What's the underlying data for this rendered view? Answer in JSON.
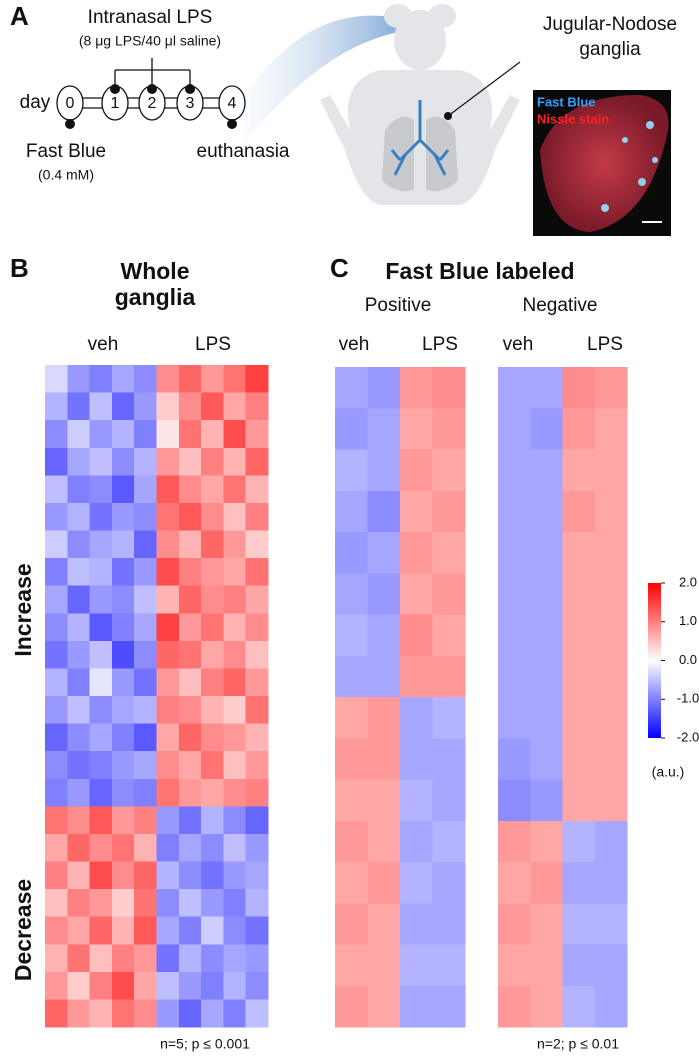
{
  "panel_a": {
    "letter": "A",
    "treatment": "Intranasal LPS",
    "dose": "(8 μg LPS/40 μl saline)",
    "day_label": "day",
    "days": [
      "0",
      "1",
      "2",
      "3",
      "4"
    ],
    "tracer": "Fast Blue",
    "tracer_dose": "(0.4 mM)",
    "endpoint": "euthanasia",
    "tissue": [
      "Jugular-Nodose",
      "ganglia"
    ],
    "stain_labels": [
      "Fast Blue",
      "Nissle stain"
    ]
  },
  "panel_b": {
    "letter": "B",
    "title": [
      "Whole",
      "ganglia"
    ],
    "columns": [
      "veh",
      "LPS"
    ],
    "groups": [
      "Increase",
      "Decrease"
    ],
    "footnote": "n=5; p ≤ 0.001",
    "heatmap": [
      [
        -0.3,
        -0.8,
        -1.0,
        -0.7,
        -0.9,
        0.9,
        1.2,
        0.8,
        1.1,
        1.5
      ],
      [
        -0.6,
        -1.1,
        -0.5,
        -1.2,
        -0.8,
        0.4,
        0.9,
        1.3,
        0.7,
        1.0
      ],
      [
        -0.9,
        -0.4,
        -0.8,
        -0.6,
        -1.0,
        0.2,
        1.1,
        0.6,
        1.4,
        0.8
      ],
      [
        -1.2,
        -0.7,
        -0.5,
        -0.9,
        -0.6,
        0.8,
        0.5,
        1.0,
        0.6,
        1.2
      ],
      [
        -0.5,
        -1.0,
        -0.9,
        -1.3,
        -0.7,
        1.3,
        0.9,
        0.7,
        1.1,
        0.6
      ],
      [
        -0.8,
        -0.6,
        -1.1,
        -0.8,
        -0.9,
        1.1,
        1.3,
        0.9,
        0.5,
        1.0
      ],
      [
        -0.4,
        -0.9,
        -0.7,
        -0.6,
        -1.2,
        0.9,
        0.6,
        1.2,
        0.8,
        0.4
      ],
      [
        -1.0,
        -0.5,
        -0.6,
        -1.1,
        -0.8,
        1.4,
        1.0,
        0.8,
        0.7,
        1.1
      ],
      [
        -0.7,
        -1.2,
        -0.8,
        -0.9,
        -0.5,
        0.6,
        1.2,
        0.9,
        1.0,
        0.7
      ],
      [
        -0.9,
        -0.6,
        -1.3,
        -1.0,
        -0.7,
        1.5,
        0.8,
        1.1,
        0.6,
        0.9
      ],
      [
        -1.1,
        -0.8,
        -0.5,
        -1.4,
        -0.9,
        1.2,
        1.1,
        0.7,
        0.9,
        0.5
      ],
      [
        -0.6,
        -1.0,
        -0.2,
        -0.8,
        -1.1,
        0.8,
        0.5,
        1.0,
        1.2,
        0.8
      ],
      [
        -0.8,
        -0.5,
        -0.9,
        -0.7,
        -0.6,
        1.0,
        0.9,
        0.6,
        0.4,
        1.1
      ],
      [
        -1.2,
        -0.9,
        -0.7,
        -1.0,
        -1.3,
        0.7,
        1.2,
        0.9,
        0.8,
        0.6
      ],
      [
        -0.9,
        -1.1,
        -1.0,
        -0.8,
        -0.7,
        0.9,
        0.7,
        1.1,
        0.5,
        0.8
      ],
      [
        -1.0,
        -0.8,
        -1.2,
        -0.9,
        -1.0,
        1.1,
        0.8,
        0.7,
        0.9,
        1.0
      ],
      [
        1.1,
        0.9,
        1.3,
        0.8,
        1.0,
        -0.8,
        -1.1,
        -0.6,
        -0.9,
        -1.2
      ],
      [
        0.7,
        1.2,
        0.9,
        1.1,
        0.6,
        -1.0,
        -0.7,
        -0.9,
        -0.5,
        -0.8
      ],
      [
        1.0,
        0.6,
        1.4,
        0.9,
        1.2,
        -0.6,
        -0.9,
        -1.1,
        -0.8,
        -0.7
      ],
      [
        0.5,
        1.0,
        0.8,
        0.4,
        1.1,
        -0.9,
        -0.5,
        -0.8,
        -1.0,
        -0.6
      ],
      [
        0.9,
        0.7,
        1.2,
        0.6,
        1.3,
        -0.7,
        -1.0,
        -0.4,
        -0.9,
        -1.1
      ],
      [
        0.6,
        1.1,
        0.5,
        1.0,
        0.8,
        -1.1,
        -0.6,
        -0.9,
        -0.7,
        -0.8
      ],
      [
        0.8,
        0.4,
        1.0,
        1.4,
        0.7,
        -0.5,
        -0.8,
        -1.0,
        -0.6,
        -0.9
      ],
      [
        1.2,
        0.8,
        0.6,
        1.1,
        0.9,
        -0.8,
        -1.2,
        -0.7,
        -1.0,
        -0.5
      ]
    ]
  },
  "panel_c": {
    "letter": "C",
    "title": "Fast Blue labeled",
    "footnote": "n=2; p ≤ 0.01",
    "subsets": [
      {
        "name": "Positive",
        "columns": [
          "veh",
          "LPS"
        ],
        "heatmap": [
          [
            -0.7,
            -0.8,
            0.8,
            0.9
          ],
          [
            -0.8,
            -0.7,
            0.7,
            0.8
          ],
          [
            -0.6,
            -0.7,
            0.8,
            0.7
          ],
          [
            -0.7,
            -0.9,
            0.7,
            0.8
          ],
          [
            -0.8,
            -0.7,
            0.8,
            0.7
          ],
          [
            -0.7,
            -0.8,
            0.7,
            0.8
          ],
          [
            -0.6,
            -0.7,
            0.9,
            0.7
          ],
          [
            -0.7,
            -0.7,
            0.8,
            0.8
          ],
          [
            0.7,
            0.8,
            -0.7,
            -0.6
          ],
          [
            0.8,
            0.8,
            -0.7,
            -0.7
          ],
          [
            0.7,
            0.7,
            -0.6,
            -0.7
          ],
          [
            0.8,
            0.7,
            -0.7,
            -0.6
          ],
          [
            0.7,
            0.8,
            -0.6,
            -0.7
          ],
          [
            0.8,
            0.7,
            -0.7,
            -0.7
          ],
          [
            0.7,
            0.7,
            -0.6,
            -0.6
          ],
          [
            0.8,
            0.7,
            -0.7,
            -0.7
          ]
        ]
      },
      {
        "name": "Negative",
        "columns": [
          "veh",
          "LPS"
        ],
        "heatmap": [
          [
            -0.7,
            -0.7,
            0.9,
            0.8
          ],
          [
            -0.7,
            -0.8,
            0.8,
            0.7
          ],
          [
            -0.7,
            -0.7,
            0.7,
            0.7
          ],
          [
            -0.7,
            -0.7,
            0.8,
            0.7
          ],
          [
            -0.7,
            -0.7,
            0.7,
            0.7
          ],
          [
            -0.7,
            -0.7,
            0.7,
            0.7
          ],
          [
            -0.7,
            -0.7,
            0.7,
            0.7
          ],
          [
            -0.7,
            -0.7,
            0.7,
            0.7
          ],
          [
            -0.7,
            -0.7,
            0.7,
            0.7
          ],
          [
            -0.8,
            -0.7,
            0.7,
            0.7
          ],
          [
            -0.9,
            -0.8,
            0.7,
            0.7
          ],
          [
            0.8,
            0.7,
            -0.6,
            -0.7
          ],
          [
            0.7,
            0.8,
            -0.7,
            -0.7
          ],
          [
            0.8,
            0.7,
            -0.6,
            -0.6
          ],
          [
            0.7,
            0.7,
            -0.7,
            -0.7
          ],
          [
            0.8,
            0.7,
            -0.6,
            -0.7
          ]
        ]
      }
    ]
  },
  "colorbar": {
    "range": [
      -2,
      2
    ],
    "unit": "(a.u.)",
    "ticks": [
      {
        "value": 2,
        "label": "2.0"
      },
      {
        "value": 1,
        "label": "1.0"
      },
      {
        "value": 0,
        "label": "0.0"
      },
      {
        "value": -1,
        "label": "-1.0"
      },
      {
        "value": -2,
        "label": "-2.0"
      }
    ]
  }
}
